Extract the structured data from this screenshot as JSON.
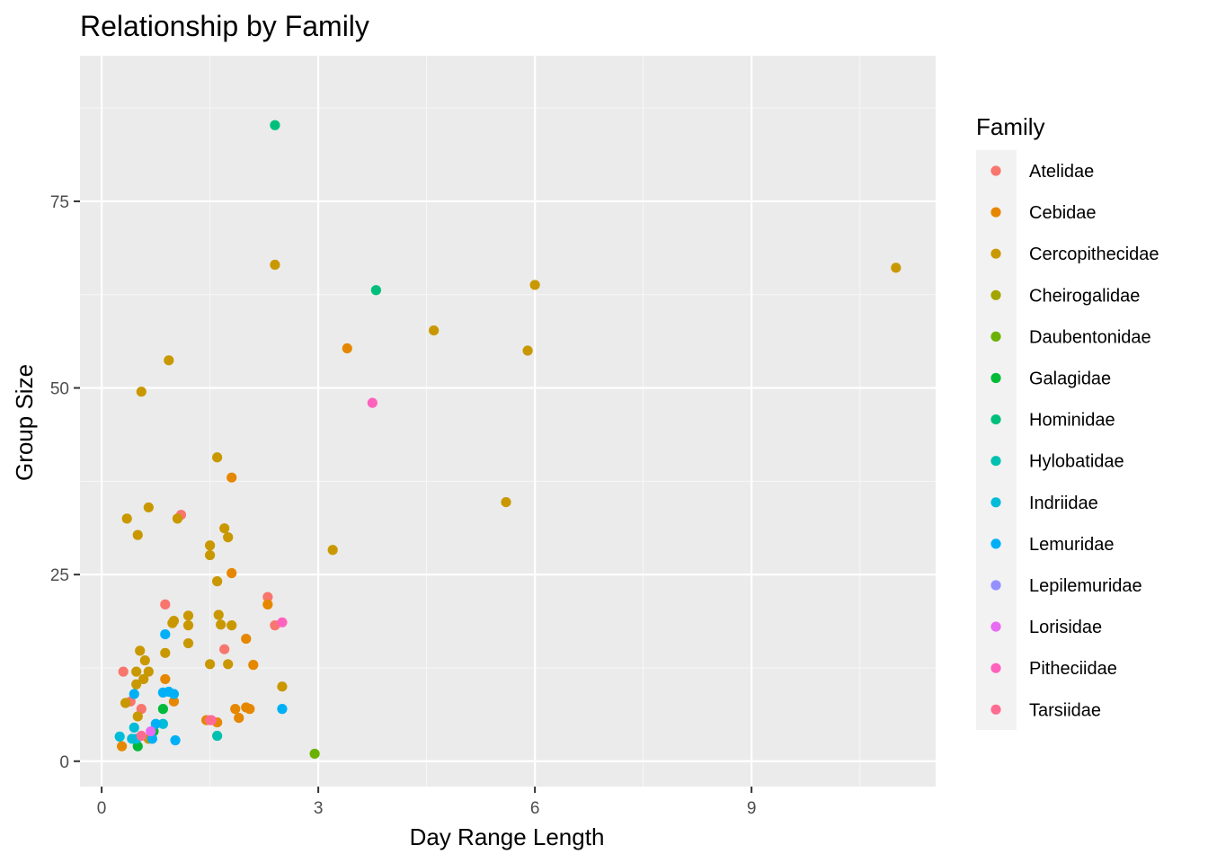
{
  "chart_data": {
    "type": "scatter",
    "title": "Relationship by Family",
    "xlabel": "Day Range Length",
    "ylabel": "Group Size",
    "xlim": [
      -0.3,
      11.55
    ],
    "ylim": [
      -3.4,
      94.5
    ],
    "x_ticks": [
      0,
      3,
      6,
      9
    ],
    "y_ticks": [
      0,
      25,
      50,
      75
    ],
    "x_tick_labels": [
      "0",
      "3",
      "6",
      "9"
    ],
    "y_tick_labels": [
      "0",
      "25",
      "50",
      "75"
    ],
    "grid": true,
    "legend": {
      "title": "Family",
      "placement": "right"
    },
    "series": [
      {
        "name": "Atelidae",
        "color": "#F8766D",
        "points": [
          [
            0.3,
            12
          ],
          [
            0.4,
            8
          ],
          [
            0.55,
            7
          ],
          [
            0.88,
            21
          ],
          [
            1.1,
            33
          ],
          [
            1.7,
            15
          ],
          [
            2.3,
            22
          ],
          [
            2.4,
            18.2
          ]
        ]
      },
      {
        "name": "Cebidae",
        "color": "#E58700",
        "points": [
          [
            0.28,
            2
          ],
          [
            0.88,
            11
          ],
          [
            1.0,
            8
          ],
          [
            1.45,
            5.5
          ],
          [
            1.6,
            5.2
          ],
          [
            1.8,
            38
          ],
          [
            1.8,
            25.2
          ],
          [
            1.85,
            7
          ],
          [
            1.9,
            5.8
          ],
          [
            2.0,
            16.4
          ],
          [
            2.0,
            7.2
          ],
          [
            2.05,
            7
          ],
          [
            2.1,
            12.9
          ],
          [
            2.3,
            21
          ],
          [
            3.4,
            55.3
          ]
        ]
      },
      {
        "name": "Cercopithecidae",
        "color": "#C99800",
        "points": [
          [
            0.33,
            7.8
          ],
          [
            0.35,
            32.5
          ],
          [
            0.48,
            12
          ],
          [
            0.48,
            10.3
          ],
          [
            0.5,
            30.3
          ],
          [
            0.5,
            6
          ],
          [
            0.53,
            14.8
          ],
          [
            0.55,
            49.5
          ],
          [
            0.58,
            11
          ],
          [
            0.6,
            13.5
          ],
          [
            0.65,
            34
          ],
          [
            0.65,
            12
          ],
          [
            0.65,
            3
          ],
          [
            0.88,
            14.5
          ],
          [
            0.93,
            53.7
          ],
          [
            0.98,
            18.5
          ],
          [
            1.0,
            18.8
          ],
          [
            1.05,
            32.5
          ],
          [
            1.2,
            19.5
          ],
          [
            1.2,
            18.2
          ],
          [
            1.2,
            15.8
          ],
          [
            1.5,
            28.9
          ],
          [
            1.5,
            27.6
          ],
          [
            1.5,
            13
          ],
          [
            1.6,
            40.7
          ],
          [
            1.6,
            24.1
          ],
          [
            1.62,
            19.6
          ],
          [
            1.65,
            18.3
          ],
          [
            1.7,
            31.2
          ],
          [
            1.75,
            30
          ],
          [
            1.75,
            13
          ],
          [
            1.8,
            18.2
          ],
          [
            2.4,
            66.5
          ],
          [
            2.5,
            10
          ],
          [
            3.2,
            28.3
          ],
          [
            4.6,
            57.7
          ],
          [
            5.6,
            34.7
          ],
          [
            5.9,
            55
          ],
          [
            6.0,
            63.8
          ],
          [
            11.0,
            66.1
          ]
        ]
      },
      {
        "name": "Cheirogalidae",
        "color": "#A3A500",
        "points": []
      },
      {
        "name": "Daubentonidae",
        "color": "#6BB100",
        "points": [
          [
            2.95,
            1
          ]
        ]
      },
      {
        "name": "Galagidae",
        "color": "#00BA38",
        "points": [
          [
            0.5,
            2
          ],
          [
            0.72,
            4
          ],
          [
            0.85,
            7
          ]
        ]
      },
      {
        "name": "Hominidae",
        "color": "#00BF7D",
        "points": [
          [
            2.4,
            85.2
          ],
          [
            3.8,
            63.1
          ]
        ]
      },
      {
        "name": "Hylobatidae",
        "color": "#00C0AF",
        "points": [
          [
            1.6,
            3.4
          ]
        ]
      },
      {
        "name": "Indriidae",
        "color": "#00BCD8",
        "points": [
          [
            0.25,
            3.3
          ],
          [
            0.42,
            3
          ],
          [
            0.45,
            4.5
          ],
          [
            0.48,
            3
          ],
          [
            0.85,
            5
          ]
        ]
      },
      {
        "name": "Lemuridae",
        "color": "#00B0F6",
        "points": [
          [
            0.45,
            9
          ],
          [
            0.7,
            3
          ],
          [
            0.75,
            5
          ],
          [
            0.85,
            9.2
          ],
          [
            0.88,
            17
          ],
          [
            0.93,
            9.3
          ],
          [
            1.0,
            9
          ],
          [
            1.02,
            2.8
          ],
          [
            2.5,
            7
          ]
        ]
      },
      {
        "name": "Lepilemuridae",
        "color": "#9590FF",
        "points": []
      },
      {
        "name": "Lorisidae",
        "color": "#E76BF3",
        "points": [
          [
            0.68,
            4
          ]
        ]
      },
      {
        "name": "Pitheciidae",
        "color": "#FF62BC",
        "points": [
          [
            1.52,
            5.5
          ],
          [
            2.5,
            18.6
          ],
          [
            3.75,
            48
          ]
        ]
      },
      {
        "name": "Tarsiidae",
        "color": "#FF6C91",
        "points": [
          [
            0.55,
            3.4
          ],
          [
            1.5,
            5.5
          ]
        ]
      }
    ]
  }
}
